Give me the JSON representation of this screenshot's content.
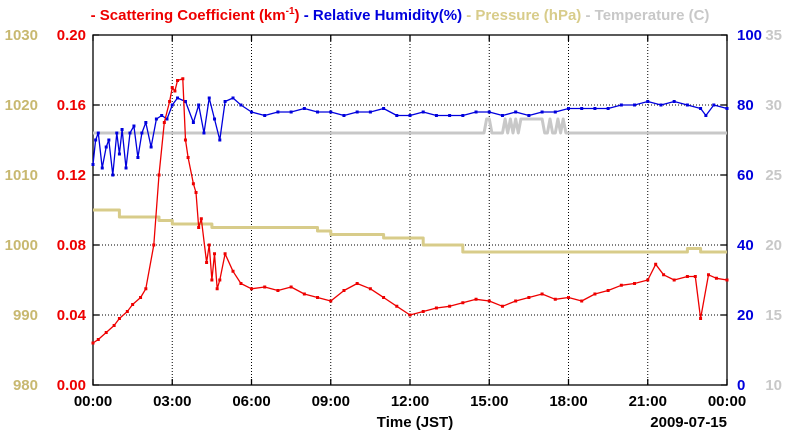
{
  "chart_data": {
    "type": "line",
    "legend": [
      {
        "name": "Scattering Coefficient (km",
        "sup": "-1",
        "tail": ")",
        "color": "#ee0000"
      },
      {
        "name": "Relative Humidity(%)",
        "color": "#0000dd"
      },
      {
        "name": "Pressure (hPa)",
        "color": "#d8cc8a"
      },
      {
        "name": "Temperature (C)",
        "color": "#c8c8c8"
      }
    ],
    "xlabel": "Time (JST)",
    "date_label": "2009-07-15",
    "x_range": [
      0,
      24
    ],
    "x_ticks": [
      {
        "v": 0,
        "label": "00:00"
      },
      {
        "v": 3,
        "label": "03:00"
      },
      {
        "v": 6,
        "label": "06:00"
      },
      {
        "v": 9,
        "label": "09:00"
      },
      {
        "v": 12,
        "label": "12:00"
      },
      {
        "v": 15,
        "label": "15:00"
      },
      {
        "v": 18,
        "label": "18:00"
      },
      {
        "v": 21,
        "label": "21:00"
      },
      {
        "v": 24,
        "label": "00:00"
      }
    ],
    "axes": {
      "scattering": {
        "range": [
          0,
          0.2
        ],
        "ticks": [
          "0.00",
          "0.04",
          "0.08",
          "0.12",
          "0.16",
          "0.20"
        ],
        "color": "#ee0000"
      },
      "pressure": {
        "range": [
          980,
          1030
        ],
        "ticks": [
          "980",
          "990",
          "1000",
          "1010",
          "1020",
          "1030"
        ],
        "color": "#c8b870"
      },
      "humidity": {
        "range": [
          0,
          100
        ],
        "ticks": [
          "0",
          "20",
          "40",
          "60",
          "80",
          "100"
        ],
        "color": "#0000dd"
      },
      "temperature": {
        "range": [
          10,
          35
        ],
        "ticks": [
          "10",
          "15",
          "20",
          "25",
          "30",
          "35"
        ],
        "color": "#c8c8c8"
      }
    },
    "series": [
      {
        "name": "Scattering Coefficient",
        "axis": "scattering",
        "color": "#ee0000",
        "x": [
          0,
          0.2,
          0.5,
          0.8,
          1.0,
          1.3,
          1.5,
          1.8,
          2.0,
          2.3,
          2.5,
          2.7,
          2.9,
          3.0,
          3.1,
          3.2,
          3.4,
          3.5,
          3.6,
          3.8,
          3.9,
          4.0,
          4.1,
          4.3,
          4.4,
          4.5,
          4.6,
          4.7,
          4.8,
          5.0,
          5.3,
          5.6,
          6.0,
          6.5,
          7.0,
          7.5,
          8.0,
          8.5,
          9.0,
          9.5,
          10.0,
          10.5,
          11.0,
          11.5,
          12.0,
          12.5,
          13.0,
          13.5,
          14.0,
          14.5,
          15.0,
          15.5,
          16.0,
          16.5,
          17.0,
          17.5,
          18.0,
          18.5,
          19.0,
          19.5,
          20.0,
          20.5,
          21.0,
          21.3,
          21.6,
          22.0,
          22.5,
          22.8,
          23.0,
          23.3,
          23.6,
          24.0
        ],
        "y": [
          0.024,
          0.026,
          0.03,
          0.034,
          0.038,
          0.042,
          0.046,
          0.05,
          0.055,
          0.08,
          0.12,
          0.15,
          0.162,
          0.17,
          0.168,
          0.174,
          0.175,
          0.14,
          0.13,
          0.115,
          0.11,
          0.09,
          0.095,
          0.07,
          0.08,
          0.06,
          0.075,
          0.055,
          0.06,
          0.075,
          0.065,
          0.058,
          0.055,
          0.056,
          0.054,
          0.056,
          0.052,
          0.05,
          0.048,
          0.054,
          0.058,
          0.055,
          0.05,
          0.045,
          0.04,
          0.042,
          0.044,
          0.045,
          0.047,
          0.049,
          0.048,
          0.045,
          0.048,
          0.05,
          0.052,
          0.049,
          0.05,
          0.048,
          0.052,
          0.054,
          0.057,
          0.058,
          0.06,
          0.069,
          0.063,
          0.06,
          0.062,
          0.062,
          0.038,
          0.063,
          0.061,
          0.06
        ]
      },
      {
        "name": "Relative Humidity",
        "axis": "humidity",
        "color": "#0000dd",
        "x": [
          0,
          0.1,
          0.2,
          0.35,
          0.5,
          0.6,
          0.75,
          0.9,
          1.0,
          1.1,
          1.25,
          1.4,
          1.55,
          1.7,
          1.85,
          2.0,
          2.2,
          2.4,
          2.6,
          2.8,
          3.0,
          3.2,
          3.5,
          3.8,
          4.0,
          4.2,
          4.4,
          4.6,
          4.8,
          5.0,
          5.3,
          5.6,
          6.0,
          6.5,
          7.0,
          7.5,
          8.0,
          8.5,
          9.0,
          9.5,
          10.0,
          10.5,
          11.0,
          11.5,
          12.0,
          12.5,
          13.0,
          13.5,
          14.0,
          14.5,
          15.0,
          15.5,
          16.0,
          16.5,
          17.0,
          17.5,
          18.0,
          18.5,
          19.0,
          19.5,
          20.0,
          20.5,
          21.0,
          21.5,
          22.0,
          22.5,
          23.0,
          23.2,
          23.5,
          24.0
        ],
        "y": [
          63,
          70,
          72,
          62,
          68,
          70,
          60,
          72,
          66,
          73,
          62,
          72,
          74,
          65,
          72,
          75,
          68,
          76,
          77,
          76,
          80,
          82,
          81,
          75,
          80,
          72,
          82,
          76,
          70,
          81,
          82,
          80,
          78,
          77,
          78,
          78,
          79,
          78,
          78,
          77,
          78,
          78,
          79,
          77,
          77,
          78,
          77,
          77,
          77,
          78,
          78,
          77,
          78,
          77,
          78,
          78,
          79,
          79,
          79,
          79,
          80,
          80,
          81,
          80,
          81,
          80,
          79,
          77,
          80,
          79
        ]
      },
      {
        "name": "Pressure",
        "axis": "pressure",
        "color": "#d8cc8a",
        "x": [
          0,
          1.0,
          1.0,
          2.5,
          2.5,
          3.0,
          3.0,
          4.5,
          4.5,
          8.5,
          8.5,
          9.0,
          9.0,
          11.0,
          11.0,
          12.5,
          12.5,
          14.0,
          14.0,
          22.5,
          22.5,
          23.0,
          23.0,
          24.0
        ],
        "y": [
          1005,
          1005,
          1004,
          1004,
          1003.5,
          1003.5,
          1003,
          1003,
          1002.5,
          1002.5,
          1002,
          1002,
          1001.5,
          1001.5,
          1001,
          1001,
          1000,
          1000,
          999,
          999,
          999.5,
          999.5,
          999,
          999
        ]
      },
      {
        "name": "Temperature",
        "axis": "temperature",
        "color": "#c8c8c8",
        "x": [
          0,
          14.8,
          14.9,
          15.0,
          15.1,
          15.2,
          15.3,
          15.5,
          15.6,
          15.7,
          15.8,
          15.9,
          16.0,
          16.1,
          16.2,
          16.4,
          16.5,
          17.0,
          17.1,
          17.2,
          17.3,
          17.4,
          17.5,
          17.6,
          17.7,
          17.8,
          17.9,
          24.0
        ],
        "y": [
          28,
          28,
          29,
          29,
          28,
          28,
          28,
          28,
          29,
          28,
          29,
          28,
          29,
          28,
          29,
          29,
          29,
          29,
          28,
          28,
          29,
          28,
          28,
          29,
          28,
          29,
          28,
          28
        ]
      }
    ]
  }
}
